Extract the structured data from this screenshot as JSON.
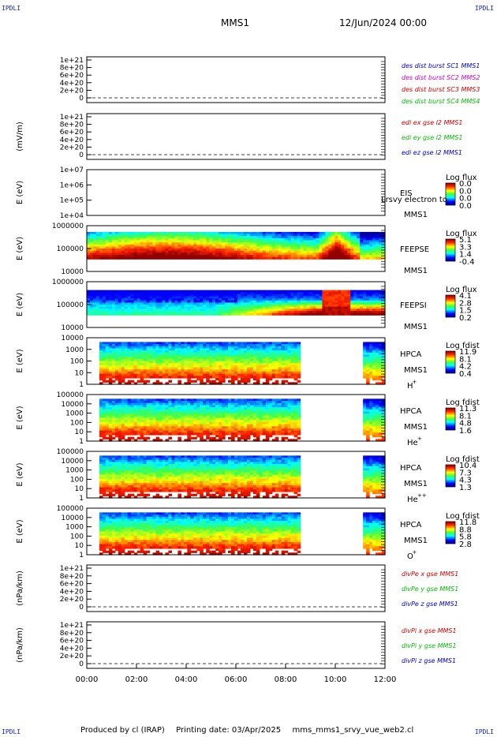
{
  "header": {
    "title": "MMS1",
    "date": "12/Jun/2024 00:00",
    "corner_label": "IPDLI"
  },
  "footer": {
    "produced_by": "Produced by cl (IRAP)",
    "printing_date": "Printing date: 03/Apr/2025",
    "filename": "mms_mms1_srvy_vue_web2.cl"
  },
  "time_axis": {
    "ticks": [
      "00:00",
      "02:00",
      "04:00",
      "06:00",
      "08:00",
      "10:00",
      "12:00"
    ]
  },
  "panels": [
    {
      "kind": "line",
      "ylabel": "",
      "yticks": [
        "1e+21",
        "8e+20",
        "6e+20",
        "4e+20",
        "2e+20",
        "0"
      ],
      "legend": [
        {
          "text": "des dist burst SC1 MMS1",
          "color": "#0000cc"
        },
        {
          "text": "des dist burst SC2 MMS2",
          "color": "#cc00cc"
        },
        {
          "text": "des dist burst SC3 MMS3",
          "color": "#cc0000"
        },
        {
          "text": "des dist burst SC4 MMS4",
          "color": "#00bb00"
        }
      ]
    },
    {
      "kind": "line",
      "ylabel": "(mV/m)",
      "yticks": [
        "1e+21",
        "8e+20",
        "6e+20",
        "4e+20",
        "2e+20",
        "0"
      ],
      "legend": [
        {
          "text": "edi ex gse l2 MMS1",
          "color": "#cc0000"
        },
        {
          "text": "edi ey gse l2 MMS1",
          "color": "#00bb00"
        },
        {
          "text": "edi ez gse l2 MMS1",
          "color": "#0000cc"
        }
      ]
    },
    {
      "kind": "spectro",
      "pattern": "empty",
      "ylabel": "E (eV)",
      "yticks": [
        "1e+07",
        "1e+06",
        "1e+05",
        "1e+04"
      ],
      "instrument": "EIS",
      "extra_label": "Lrsvy electron to",
      "spacecraft": "MMS1",
      "species": "",
      "species_sup": "",
      "cbar_title": "Log flux",
      "cbar_ticks": [
        "0.0",
        "0.0",
        "0.0",
        "0.0"
      ]
    },
    {
      "kind": "spectro",
      "pattern": "feepse",
      "ylabel": "E (eV)",
      "yticks": [
        "1000000",
        "100000",
        "10000"
      ],
      "instrument": "FEEPSE",
      "extra_label": "",
      "spacecraft": "MMS1",
      "species": "",
      "species_sup": "",
      "cbar_title": "Log flux",
      "cbar_ticks": [
        "5.1",
        "3.3",
        "1.4",
        "-0.4"
      ]
    },
    {
      "kind": "spectro",
      "pattern": "feepsi",
      "ylabel": "E (eV)",
      "yticks": [
        "1000000",
        "100000",
        "10000"
      ],
      "instrument": "FEEPSI",
      "extra_label": "",
      "spacecraft": "MMS1",
      "species": "",
      "species_sup": "",
      "cbar_title": "Log flux",
      "cbar_ticks": [
        "4.1",
        "2.8",
        "1.5",
        "0.2"
      ]
    },
    {
      "kind": "spectro",
      "pattern": "hpca",
      "ylabel": "E (eV)",
      "yticks": [
        "10000",
        "1000",
        "100",
        "10",
        "1"
      ],
      "instrument": "HPCA",
      "extra_label": "",
      "spacecraft": "MMS1",
      "species": "H",
      "species_sup": "+",
      "cbar_title": "Log fdist",
      "cbar_ticks": [
        "11.9",
        "8.1",
        "4.2",
        "0.4"
      ]
    },
    {
      "kind": "spectro",
      "pattern": "hpca",
      "ylabel": "E (eV)",
      "yticks": [
        "100000",
        "10000",
        "1000",
        "100",
        "10",
        "1"
      ],
      "instrument": "HPCA",
      "extra_label": "",
      "spacecraft": "MMS1",
      "species": "He",
      "species_sup": "+",
      "cbar_title": "Log fdist",
      "cbar_ticks": [
        "11.3",
        "8.1",
        "4.8",
        "1.6"
      ]
    },
    {
      "kind": "spectro",
      "pattern": "hpca",
      "ylabel": "E (eV)",
      "yticks": [
        "100000",
        "10000",
        "1000",
        "100",
        "10",
        "1"
      ],
      "instrument": "HPCA",
      "extra_label": "",
      "spacecraft": "MMS1",
      "species": "He",
      "species_sup": "++",
      "cbar_title": "Log fdist",
      "cbar_ticks": [
        "10.4",
        "7.3",
        "4.3",
        "1.3"
      ]
    },
    {
      "kind": "spectro",
      "pattern": "hpca",
      "ylabel": "E (eV)",
      "yticks": [
        "100000",
        "10000",
        "1000",
        "100",
        "10",
        "1"
      ],
      "instrument": "HPCA",
      "extra_label": "",
      "spacecraft": "MMS1",
      "species": "O",
      "species_sup": "+",
      "cbar_title": "Log fdist",
      "cbar_ticks": [
        "11.8",
        "8.8",
        "5.8",
        "2.8"
      ]
    },
    {
      "kind": "line",
      "ylabel": "(nPa/km)",
      "yticks": [
        "1e+21",
        "8e+20",
        "6e+20",
        "4e+20",
        "2e+20",
        "0"
      ],
      "legend": [
        {
          "text": "divPe x gse MMS1",
          "color": "#cc0000"
        },
        {
          "text": "divPe y gse MMS1",
          "color": "#00bb00"
        },
        {
          "text": "divPe z gse MMS1",
          "color": "#0000cc"
        }
      ]
    },
    {
      "kind": "line",
      "ylabel": "(nPa/km)",
      "yticks": [
        "1e+21",
        "8e+20",
        "6e+20",
        "4e+20",
        "2e+20",
        "0"
      ],
      "legend": [
        {
          "text": "divPi x gse MMS1",
          "color": "#cc0000"
        },
        {
          "text": "divPi y gse MMS1",
          "color": "#00bb00"
        },
        {
          "text": "divPi z gse MMS1",
          "color": "#0000cc"
        }
      ]
    }
  ],
  "chart_data": {
    "type": "heatmap",
    "title": "MMS1",
    "x_range": [
      "00:00",
      "12:00"
    ],
    "x_ticks": [
      "00:00",
      "02:00",
      "04:00",
      "06:00",
      "08:00",
      "10:00",
      "12:00"
    ],
    "hpca_data_gap": [
      "08:35",
      "11:05"
    ]
  }
}
